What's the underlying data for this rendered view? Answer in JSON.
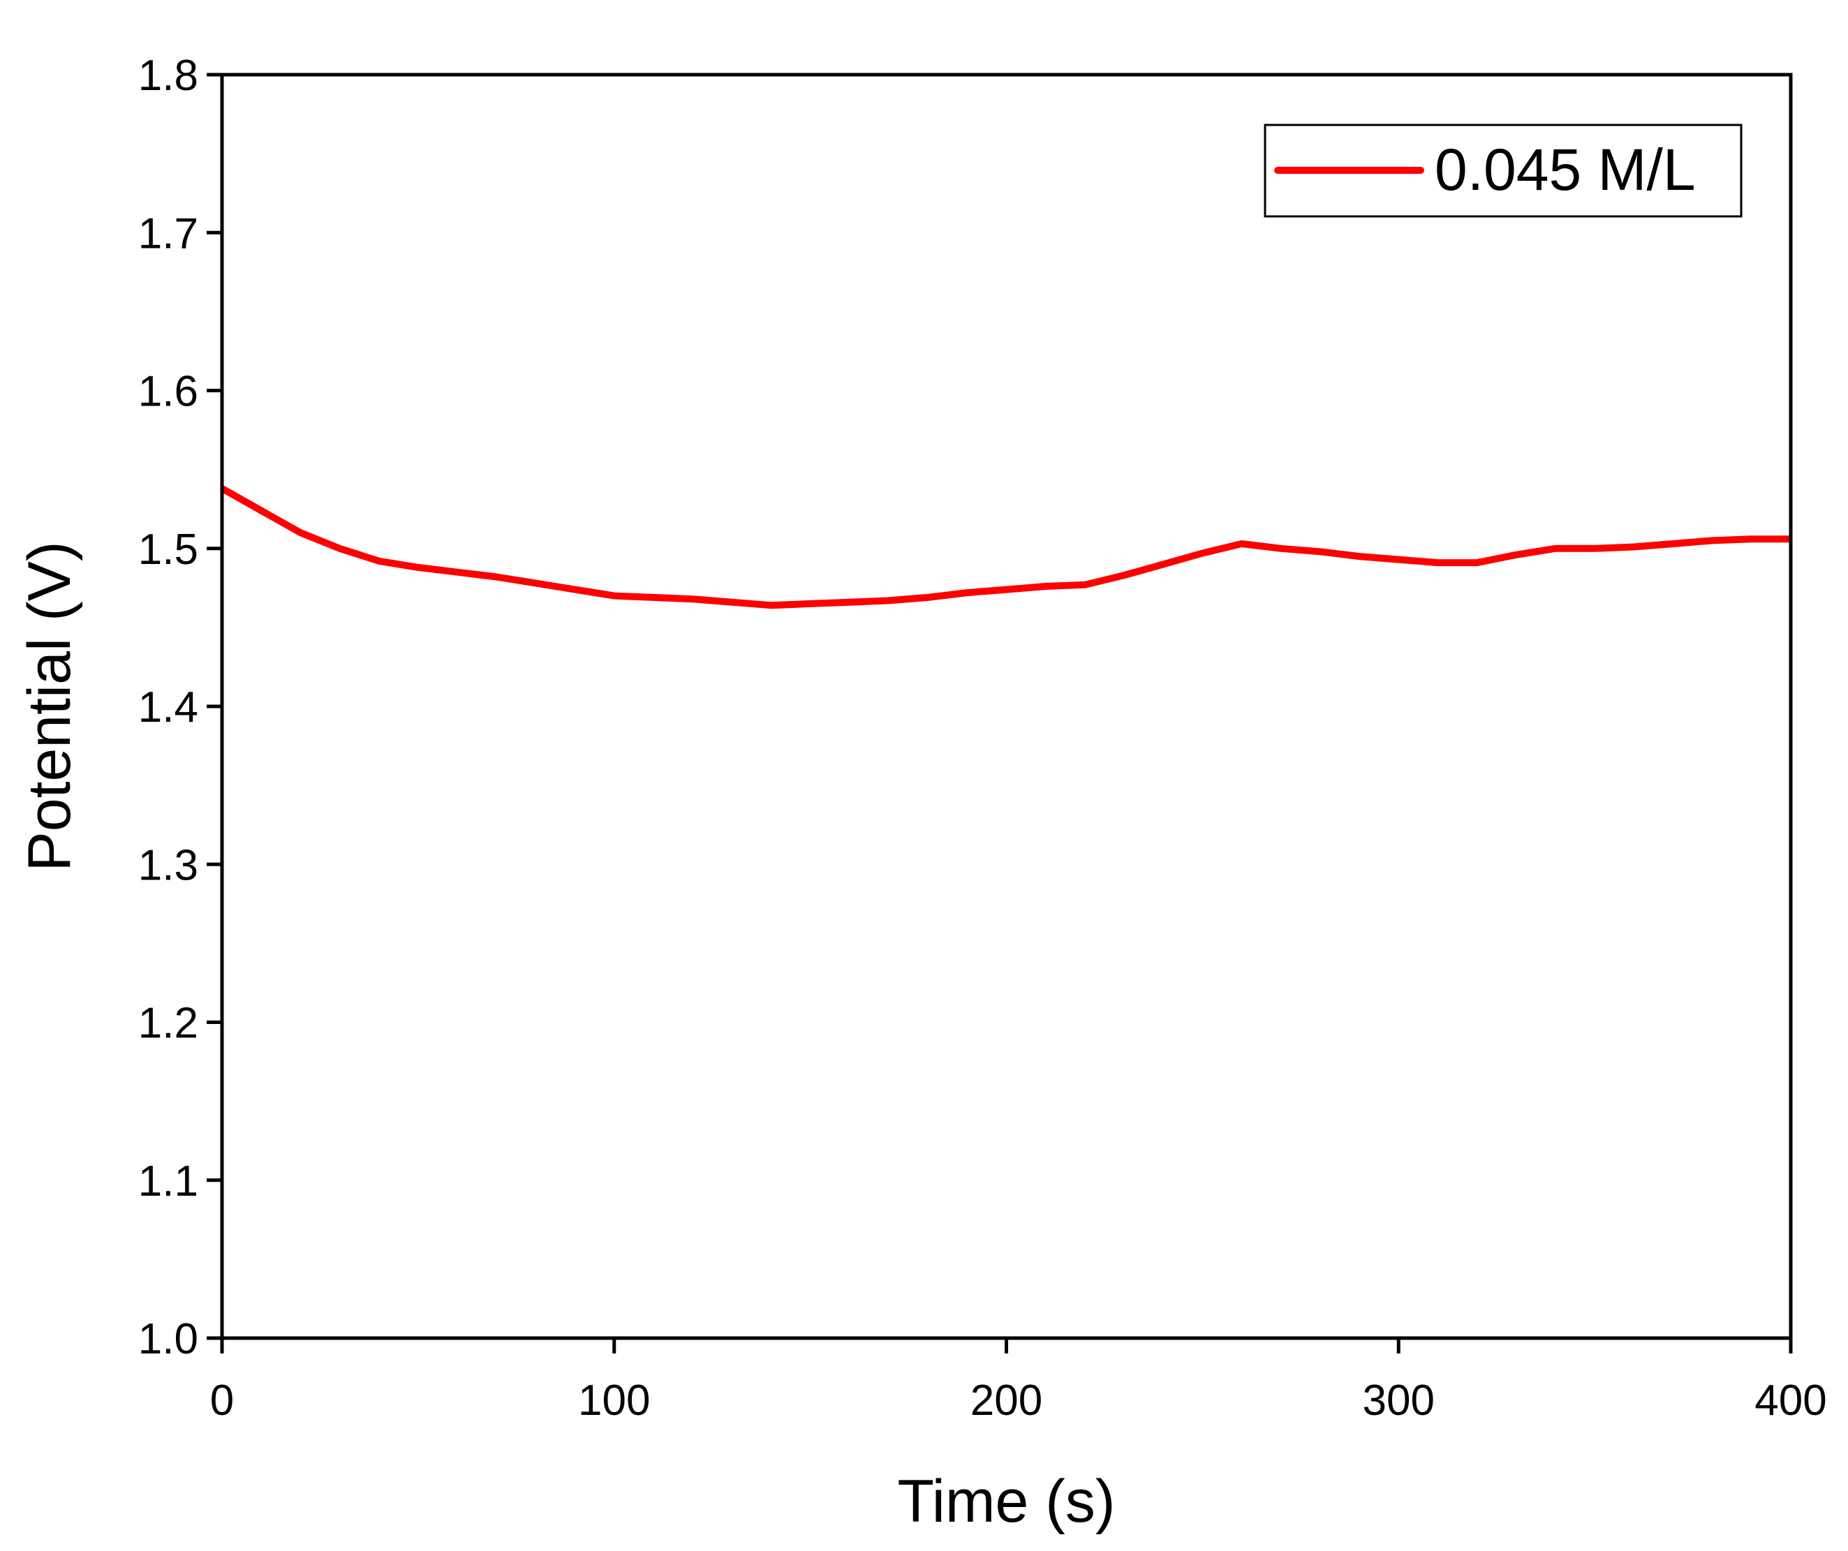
{
  "chart_data": {
    "type": "line",
    "title": "",
    "xlabel": "Time (s)",
    "ylabel": "Potential (V)",
    "xlim": [
      0,
      400
    ],
    "ylim": [
      1.0,
      1.8
    ],
    "x_ticks": [
      0,
      100,
      200,
      300,
      400
    ],
    "x_tick_labels": [
      "0",
      "100",
      "200",
      "300",
      "400"
    ],
    "y_ticks": [
      1.0,
      1.1,
      1.2,
      1.3,
      1.4,
      1.5,
      1.6,
      1.7,
      1.8
    ],
    "y_tick_labels": [
      "1.0",
      "1.1",
      "1.2",
      "1.3",
      "1.4",
      "1.5",
      "1.6",
      "1.7",
      "1.8"
    ],
    "grid": false,
    "legend_position": "top-right",
    "series": [
      {
        "name": "0.045 M/L",
        "color": "#ff0000",
        "x": [
          0,
          10,
          20,
          30,
          40,
          50,
          60,
          70,
          80,
          90,
          100,
          110,
          120,
          130,
          140,
          150,
          160,
          170,
          180,
          190,
          200,
          210,
          220,
          230,
          240,
          250,
          260,
          270,
          280,
          290,
          300,
          310,
          320,
          330,
          340,
          350,
          360,
          370,
          380,
          390,
          400
        ],
        "y": [
          1.538,
          1.524,
          1.51,
          1.5,
          1.492,
          1.488,
          1.485,
          1.482,
          1.478,
          1.474,
          1.47,
          1.469,
          1.468,
          1.466,
          1.464,
          1.465,
          1.466,
          1.467,
          1.469,
          1.472,
          1.474,
          1.476,
          1.477,
          1.483,
          1.49,
          1.497,
          1.503,
          1.5,
          1.498,
          1.495,
          1.493,
          1.491,
          1.491,
          1.496,
          1.5,
          1.5,
          1.501,
          1.503,
          1.505,
          1.506,
          1.506
        ]
      }
    ]
  }
}
